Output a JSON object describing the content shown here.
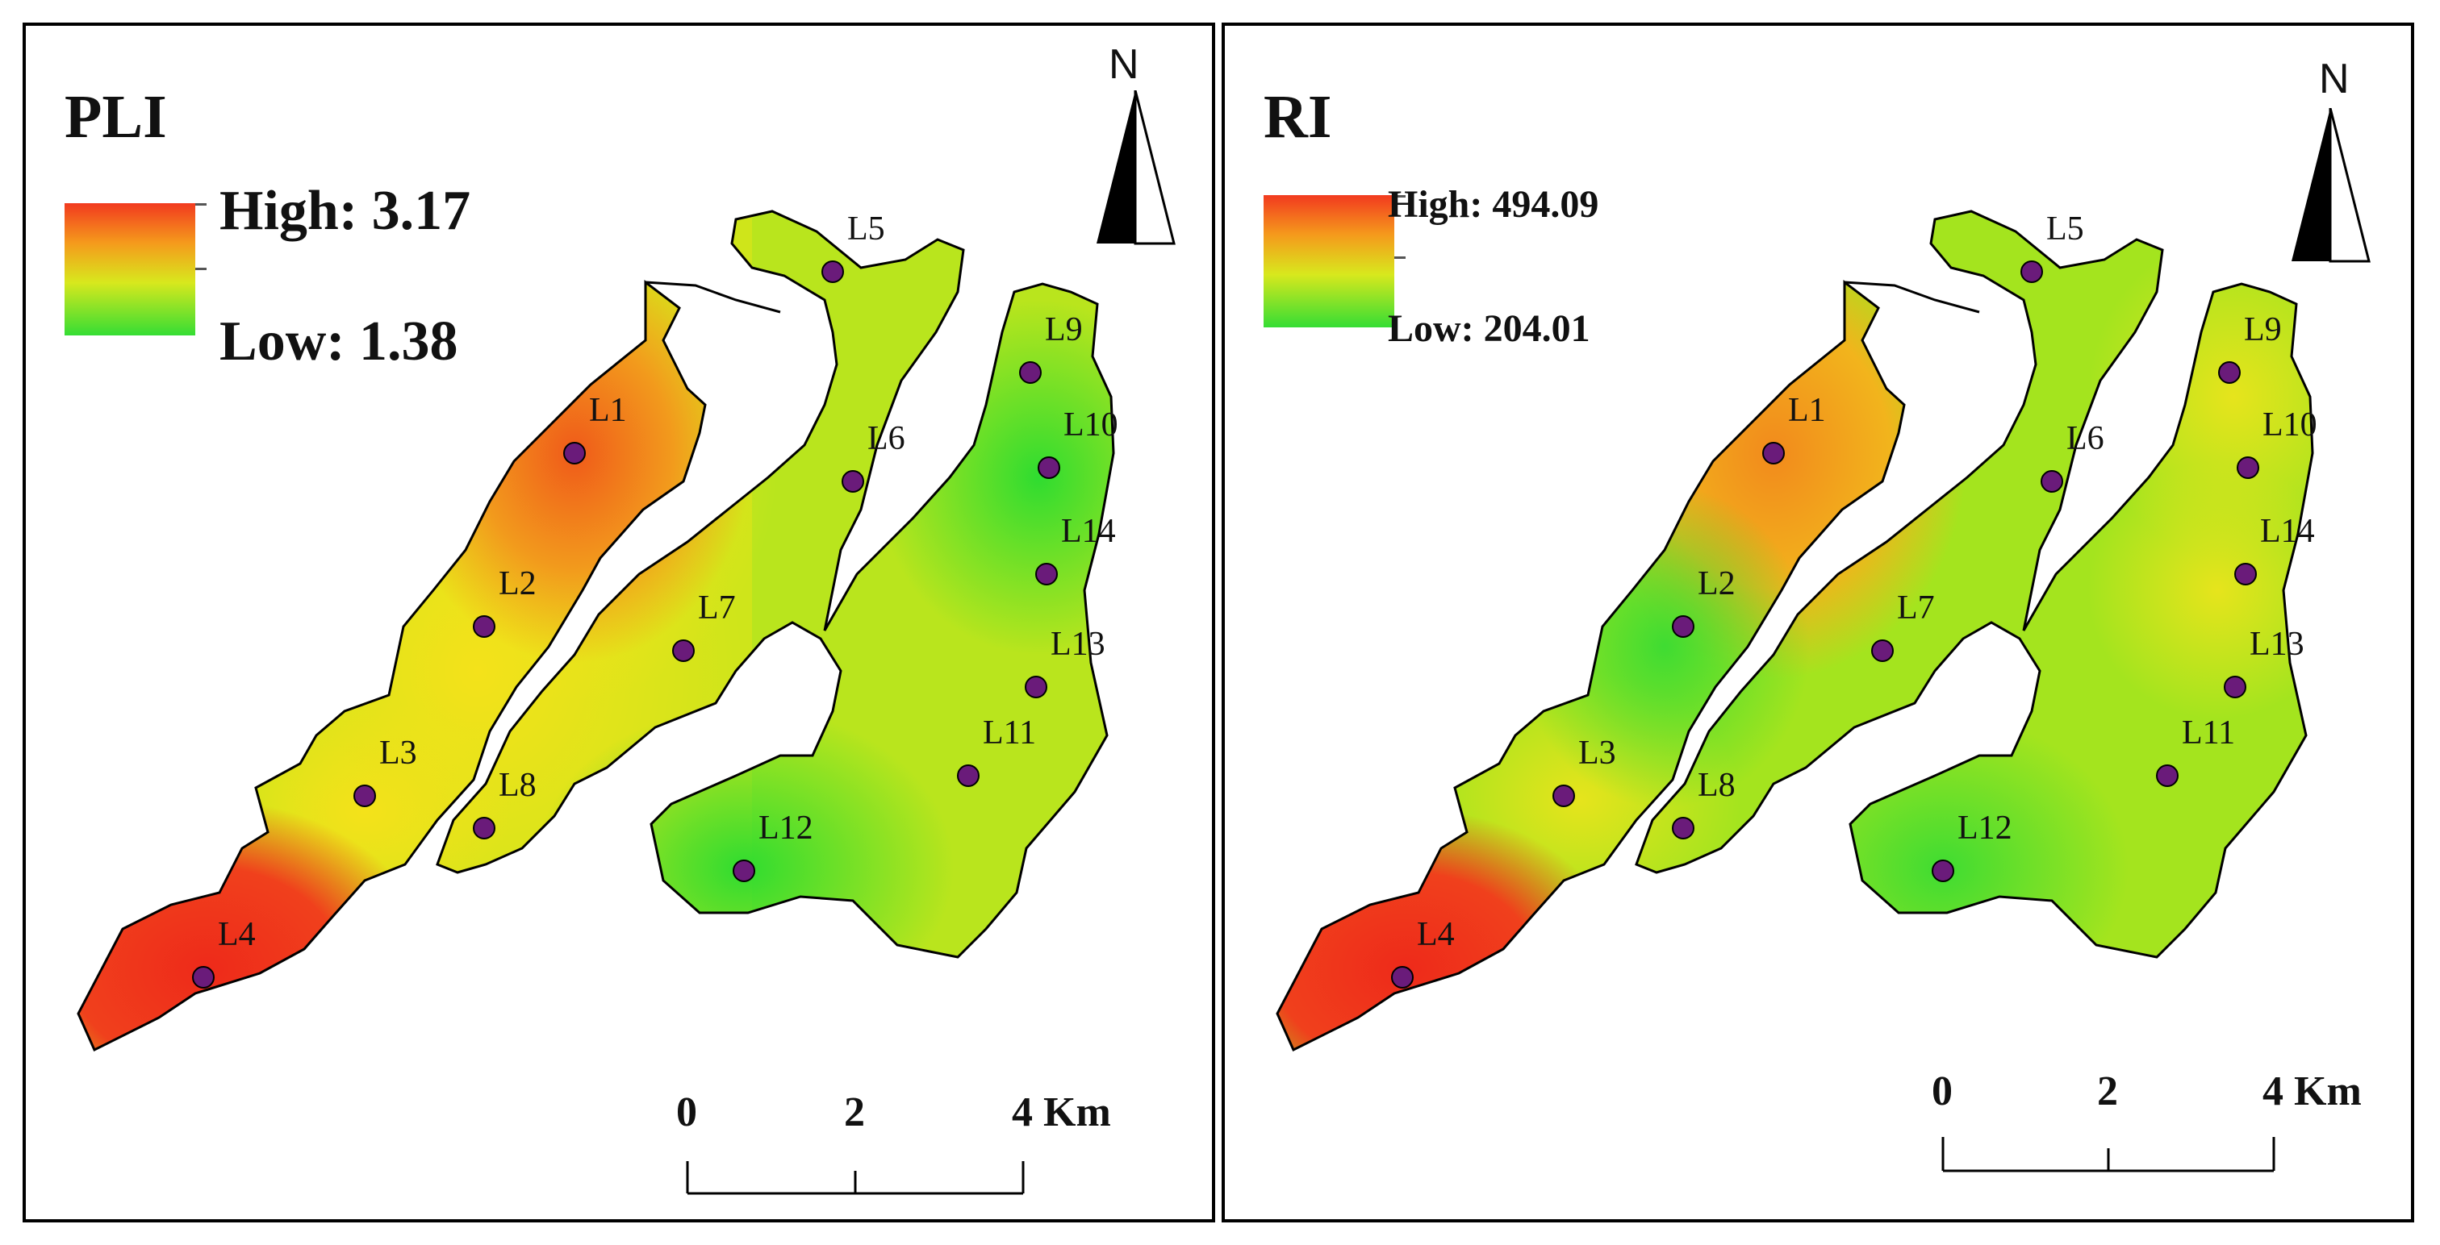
{
  "panels": [
    {
      "title": "PLI",
      "legend": {
        "high_label": "High: 3.17",
        "low_label": "Low: 1.38",
        "colors": [
          "#f23a1f",
          "#f59a1c",
          "#d8e81d",
          "#35dd34"
        ]
      },
      "north_label": "N",
      "scale": {
        "ticks": [
          "0",
          "2",
          "4 Km"
        ]
      }
    },
    {
      "title": "RI",
      "legend": {
        "high_label": "High: 494.09",
        "low_label": "Low: 204.01",
        "colors": [
          "#f23a1f",
          "#f59a1c",
          "#d8e81d",
          "#35dd34"
        ]
      },
      "north_label": "N",
      "scale": {
        "ticks": [
          "0",
          "2",
          "4 Km"
        ]
      }
    }
  ],
  "sites": [
    "L1",
    "L2",
    "L3",
    "L4",
    "L5",
    "L6",
    "L7",
    "L8",
    "L9",
    "L10",
    "L11",
    "L12",
    "L13",
    "L14"
  ],
  "colors": {
    "site_marker": "#6a1b7a",
    "outline": "#000000"
  }
}
